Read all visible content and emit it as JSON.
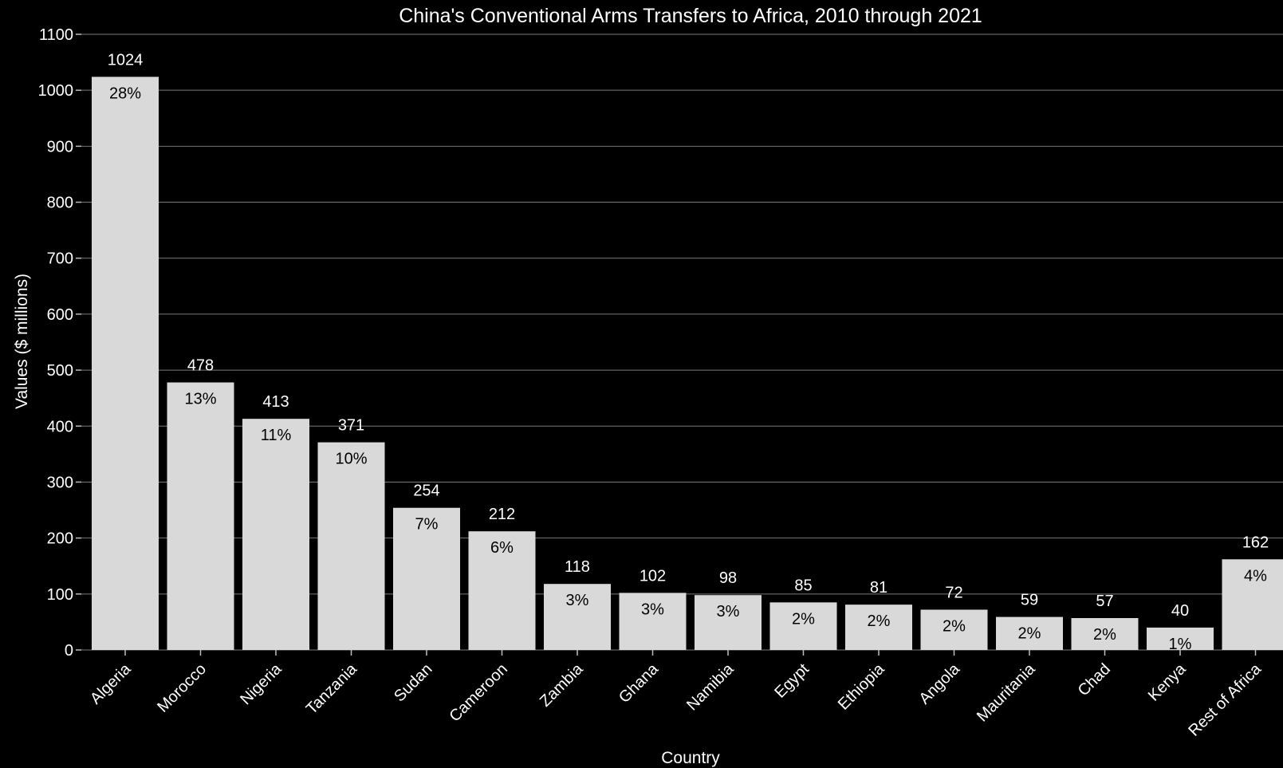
{
  "chart_data": {
    "type": "bar",
    "title": "China's Conventional Arms Transfers to Africa, 2010 through 2021",
    "xlabel": "Country",
    "ylabel": "Values ($ millions)",
    "ylim": [
      0,
      1100
    ],
    "yticks": [
      0,
      100,
      200,
      300,
      400,
      500,
      600,
      700,
      800,
      900,
      1000,
      1100
    ],
    "grid": true,
    "categories": [
      "Algeria",
      "Morocco",
      "Nigeria",
      "Tanzania",
      "Sudan",
      "Cameroon",
      "Zambia",
      "Ghana",
      "Namibia",
      "Egypt",
      "Ethiopia",
      "Angola",
      "Mauritania",
      "Chad",
      "Kenya",
      "Rest of Africa"
    ],
    "values": [
      1024,
      478,
      413,
      371,
      254,
      212,
      118,
      102,
      98,
      85,
      81,
      72,
      59,
      57,
      40,
      162
    ],
    "percent_labels": [
      "28%",
      "13%",
      "11%",
      "10%",
      "7%",
      "6%",
      "3%",
      "3%",
      "3%",
      "2%",
      "2%",
      "2%",
      "2%",
      "2%",
      "1%",
      "4%"
    ],
    "colors": {
      "background": "#000000",
      "bar": "#d9d9d9",
      "grid": "#7a7a7a",
      "text": "#ffffff"
    }
  }
}
